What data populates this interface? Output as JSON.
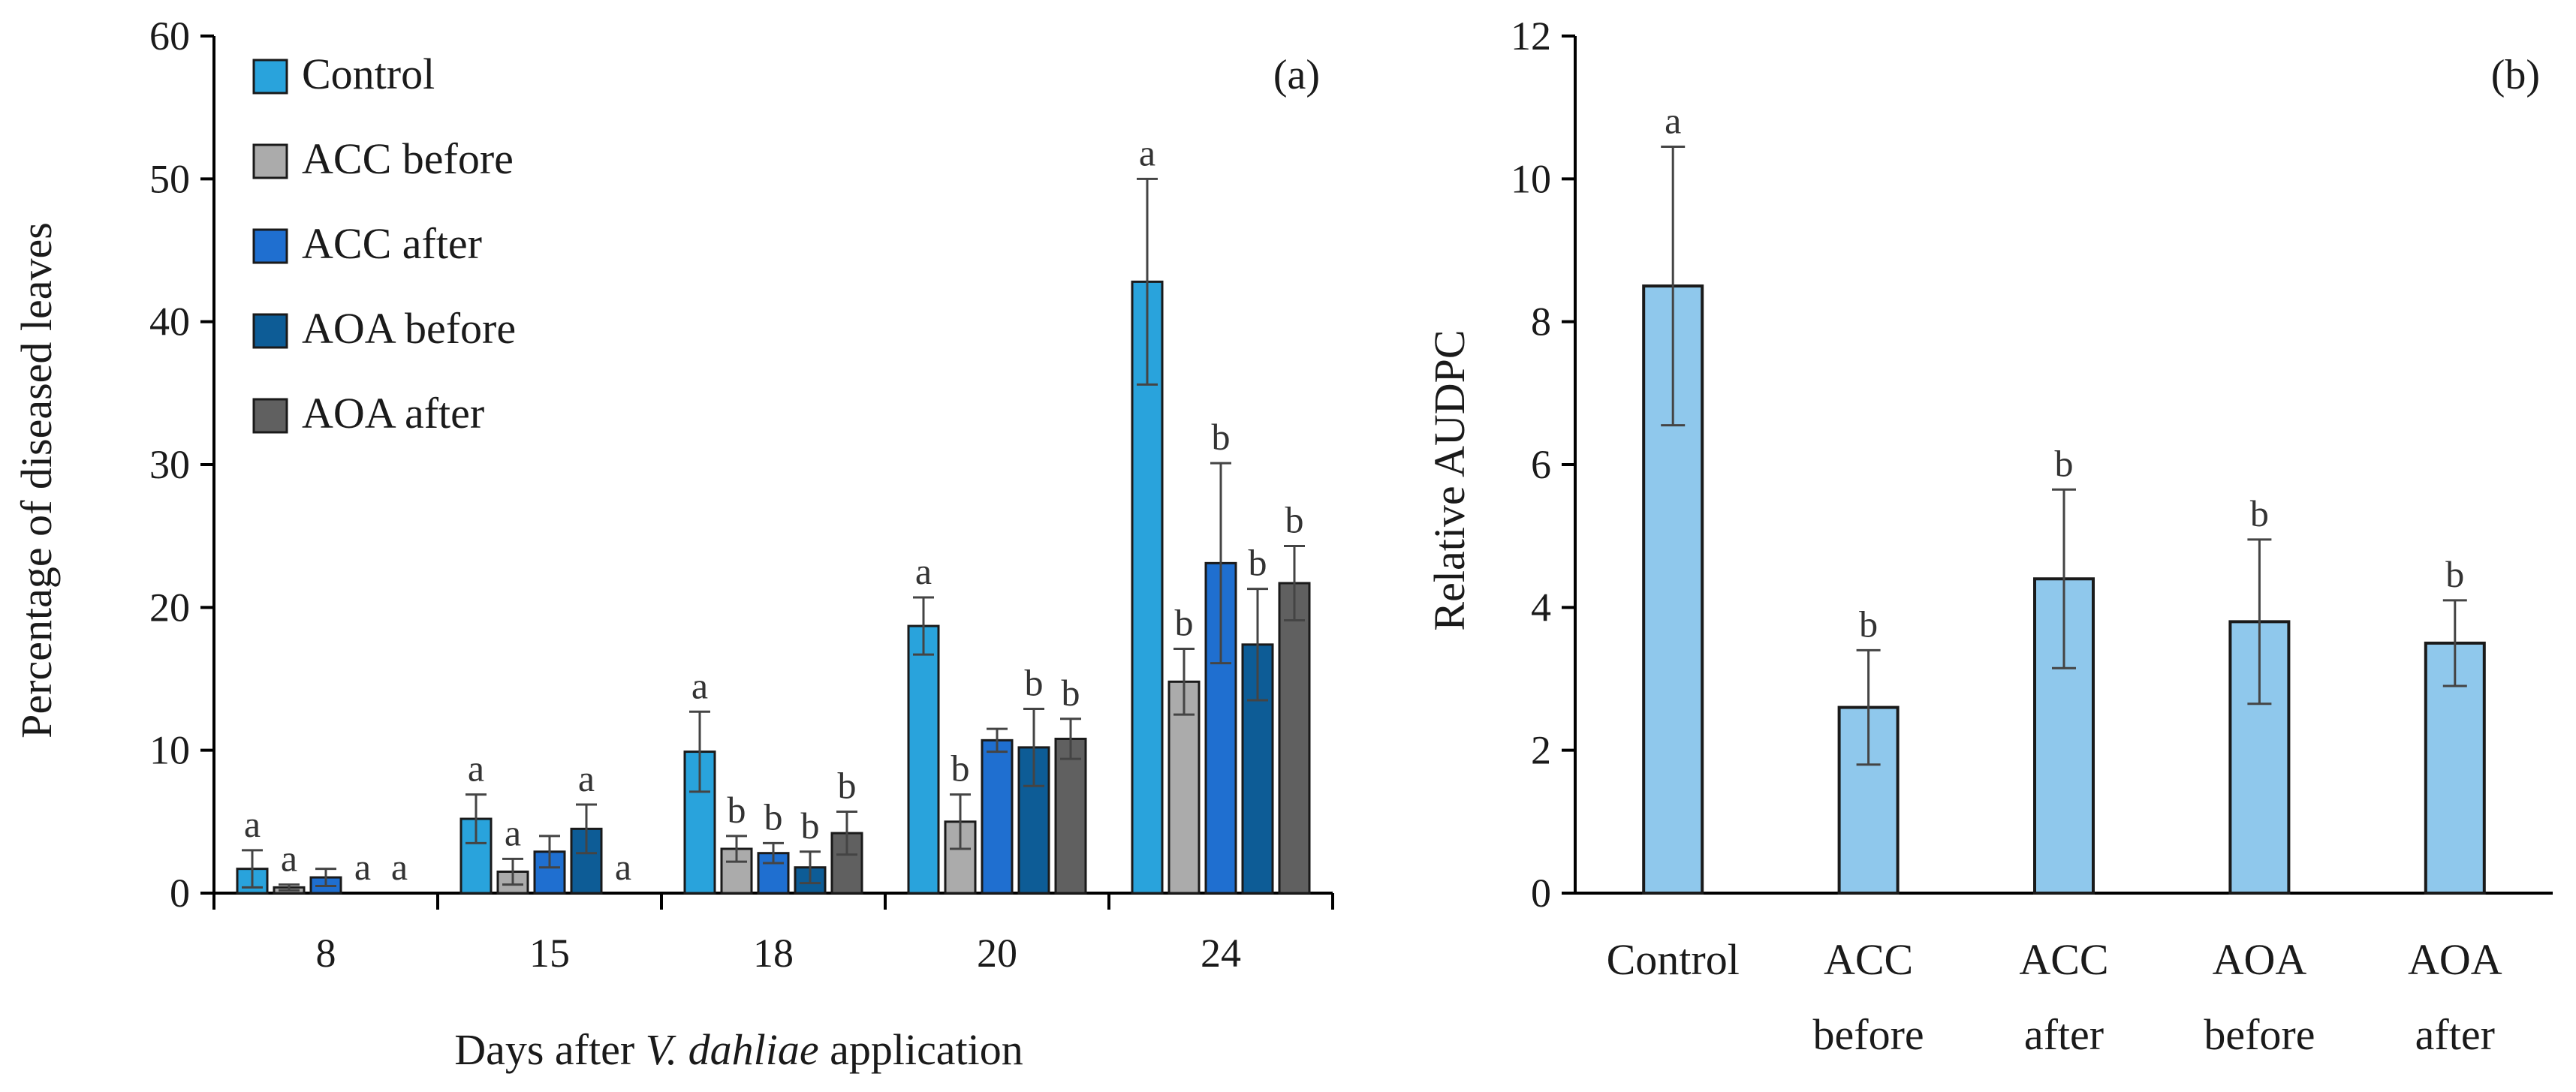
{
  "chart_data": [
    {
      "panel": "(a)",
      "type": "bar",
      "xlabel": "Days after V. dahliae application",
      "xlabel_prefix": "Days after ",
      "xlabel_italic": "V. dahliae",
      "xlabel_suffix": " application",
      "ylabel": "Percentage of diseased leaves",
      "ylim": [
        0,
        60
      ],
      "yticks": [
        "0",
        "10",
        "20",
        "30",
        "40",
        "50",
        "60"
      ],
      "categories": [
        "8",
        "15",
        "18",
        "20",
        "24"
      ],
      "legend_position": "top-left",
      "series": [
        {
          "name": "Control",
          "color": "#29a3dc",
          "values": [
            1.7,
            5.2,
            9.9,
            18.7,
            42.8
          ],
          "errors": [
            1.3,
            1.7,
            2.8,
            2.0,
            7.2
          ],
          "letters": [
            "a",
            "a",
            "a",
            "a",
            "a"
          ]
        },
        {
          "name": "ACC before",
          "color": "#ababab",
          "values": [
            0.4,
            1.5,
            3.1,
            5.0,
            14.8
          ],
          "errors": [
            0.2,
            0.9,
            0.9,
            1.9,
            2.3
          ],
          "letters": [
            "a",
            "a",
            "b",
            "b",
            "b"
          ]
        },
        {
          "name": "ACC after",
          "color": "#1f6fd0",
          "values": [
            1.1,
            2.9,
            2.8,
            10.7,
            23.1
          ],
          "errors": [
            0.6,
            1.1,
            0.7,
            0.8,
            7.0
          ],
          "letters": [
            "",
            "",
            "b",
            "",
            "b"
          ]
        },
        {
          "name": "AOA before",
          "color": "#0d5c96",
          "values": [
            0,
            4.5,
            1.8,
            10.2,
            17.4
          ],
          "errors": [
            0,
            1.7,
            1.1,
            2.7,
            3.9
          ],
          "letters": [
            "a",
            "a",
            "b",
            "b",
            "b"
          ]
        },
        {
          "name": "AOA after",
          "color": "#606060",
          "values": [
            0,
            0,
            4.2,
            10.8,
            21.7
          ],
          "errors": [
            0,
            0,
            1.5,
            1.4,
            2.6
          ],
          "letters": [
            "a",
            "a",
            "b",
            "b",
            "b"
          ]
        }
      ]
    },
    {
      "panel": "(b)",
      "type": "bar",
      "xlabel": "",
      "ylabel": "Relative AUDPC",
      "ylim": [
        0,
        12
      ],
      "yticks": [
        "0",
        "2",
        "4",
        "6",
        "8",
        "10",
        "12"
      ],
      "categories": [
        [
          "Control"
        ],
        [
          "ACC",
          "before"
        ],
        [
          "ACC",
          "after"
        ],
        [
          "AOA",
          "before"
        ],
        [
          "AOA",
          "after"
        ]
      ],
      "color": "#8fc8ec",
      "values": [
        8.5,
        2.6,
        4.4,
        3.8,
        3.5
      ],
      "errors": [
        1.95,
        0.8,
        1.25,
        1.15,
        0.6
      ],
      "letters": [
        "a",
        "b",
        "b",
        "b",
        "b"
      ]
    }
  ]
}
